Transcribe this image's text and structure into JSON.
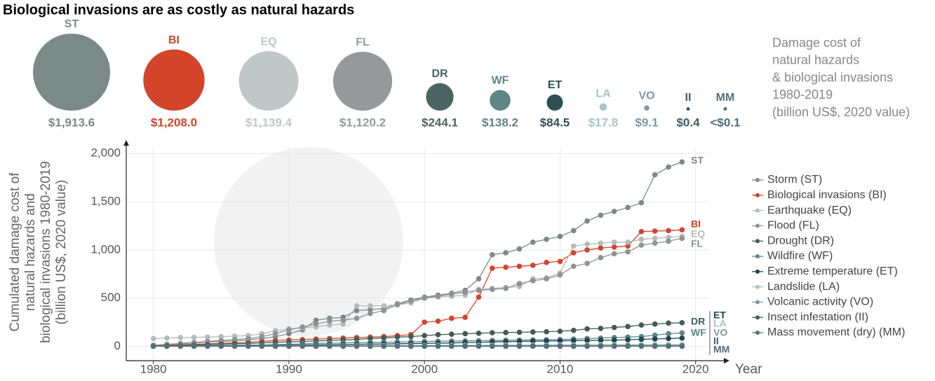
{
  "chart_data": [
    {
      "type": "bubble",
      "title": "Biological invasions are as costly as natural hazards",
      "annotation": [
        "Damage cost of",
        "natural hazards",
        "& biological invasions",
        "1980-2019",
        "(billion US$, 2020 value)"
      ],
      "categories": [
        "ST",
        "BI",
        "EQ",
        "FL",
        "DR",
        "WF",
        "ET",
        "LA",
        "VO",
        "II",
        "MM"
      ],
      "values": [
        1913.6,
        1208.0,
        1139.4,
        1120.2,
        244.1,
        138.2,
        84.5,
        17.8,
        9.1,
        0.4,
        0.05
      ],
      "value_labels": [
        "$1,913.6",
        "$1,208.0",
        "$1,139.4",
        "$1,120.2",
        "$244.1",
        "$138.2",
        "$84.5",
        "$17.8",
        "$9.1",
        "$0.4",
        "<$0.1"
      ],
      "colors": [
        "#7a8a87",
        "#d2452a",
        "#c0c8c7",
        "#969a9b",
        "#4d6562",
        "#5e8587",
        "#2e4f55",
        "#a9c4c3",
        "#7e9aa6",
        "#3e5c6a",
        "#52707a"
      ]
    },
    {
      "type": "line",
      "y_label": [
        "Cumulated damage cost of",
        "natural hazards and",
        "biological invasions 1980-2019",
        "(billion US$, 2020 value)"
      ],
      "x_label": "Year",
      "xlim": [
        1978,
        2022.5
      ],
      "xticks": [
        1980,
        1990,
        2000,
        2010,
        2020
      ],
      "ylim": [
        -150,
        2140
      ],
      "yticks": [
        0,
        500,
        {
          "value": 1000,
          "label": "1,000"
        },
        {
          "value": 1500,
          "label": "1,500"
        },
        {
          "value": 2000,
          "label": "2,000"
        }
      ],
      "grid": true,
      "legend": "right",
      "x": [
        1980,
        1981,
        1982,
        1983,
        1984,
        1985,
        1986,
        1987,
        1988,
        1989,
        1990,
        1991,
        1992,
        1993,
        1994,
        1995,
        1996,
        1997,
        1998,
        1999,
        2000,
        2001,
        2002,
        2003,
        2004,
        2005,
        2006,
        2007,
        2008,
        2009,
        2010,
        2011,
        2012,
        2013,
        2014,
        2015,
        2016,
        2017,
        2018,
        2019
      ],
      "series": [
        {
          "name": "Storm (ST)",
          "label": "ST",
          "color": "#7a8a87",
          "values": [
            10,
            20,
            25,
            35,
            45,
            50,
            55,
            65,
            80,
            100,
            130,
            170,
            270,
            290,
            300,
            370,
            380,
            390,
            440,
            480,
            510,
            530,
            550,
            580,
            700,
            950,
            970,
            1010,
            1080,
            1110,
            1140,
            1200,
            1300,
            1360,
            1400,
            1440,
            1490,
            1780,
            1860,
            1913.6
          ]
        },
        {
          "name": "Biological invasions (BI)",
          "label": "BI",
          "color": "#d2452a",
          "values": [
            5,
            10,
            15,
            20,
            25,
            30,
            35,
            40,
            50,
            60,
            65,
            70,
            75,
            80,
            85,
            90,
            95,
            100,
            110,
            120,
            250,
            260,
            290,
            300,
            510,
            810,
            820,
            830,
            840,
            870,
            880,
            970,
            1000,
            1020,
            1030,
            1040,
            1190,
            1195,
            1200,
            1208.0
          ]
        },
        {
          "name": "Earthquake (EQ)",
          "label": "EQ",
          "color": "#b4bcbb",
          "values": [
            80,
            85,
            90,
            92,
            95,
            100,
            105,
            110,
            130,
            160,
            180,
            190,
            200,
            220,
            230,
            420,
            420,
            420,
            430,
            450,
            500,
            510,
            520,
            530,
            590,
            600,
            610,
            620,
            700,
            710,
            760,
            1040,
            1060,
            1070,
            1080,
            1080,
            1110,
            1120,
            1130,
            1139.4
          ]
        },
        {
          "name": "Flood (FL)",
          "label": "FL",
          "color": "#8f9394",
          "values": [
            10,
            20,
            30,
            40,
            50,
            60,
            70,
            80,
            100,
            130,
            170,
            200,
            230,
            260,
            270,
            290,
            340,
            370,
            430,
            470,
            500,
            520,
            540,
            560,
            580,
            590,
            600,
            650,
            680,
            700,
            740,
            830,
            860,
            920,
            960,
            980,
            1050,
            1070,
            1090,
            1120.2
          ]
        },
        {
          "name": "Drought (DR)",
          "label": "DR",
          "color": "#3f5c55",
          "values": [
            2,
            5,
            8,
            12,
            15,
            20,
            25,
            28,
            35,
            40,
            45,
            50,
            55,
            60,
            65,
            70,
            80,
            85,
            95,
            100,
            110,
            120,
            125,
            130,
            135,
            140,
            142,
            145,
            148,
            150,
            155,
            165,
            180,
            185,
            195,
            205,
            220,
            230,
            240,
            244.1
          ]
        },
        {
          "name": "Wildfire (WF)",
          "label": "WF",
          "color": "#5e8587",
          "values": [
            1,
            2,
            3,
            4,
            5,
            7,
            9,
            11,
            13,
            16,
            20,
            25,
            30,
            32,
            35,
            38,
            40,
            42,
            44,
            46,
            50,
            52,
            54,
            56,
            58,
            60,
            62,
            64,
            66,
            68,
            70,
            75,
            80,
            85,
            90,
            95,
            100,
            115,
            130,
            138.2
          ]
        },
        {
          "name": "Extreme temperature (ET)",
          "label": "ET",
          "color": "#1e4650",
          "values": [
            0.5,
            1,
            1.5,
            2,
            3,
            4,
            5,
            6,
            7,
            8,
            10,
            12,
            14,
            16,
            18,
            20,
            22,
            24,
            26,
            28,
            30,
            32,
            34,
            38,
            40,
            45,
            48,
            50,
            52,
            54,
            56,
            58,
            60,
            62,
            64,
            68,
            72,
            76,
            80,
            84.5
          ]
        },
        {
          "name": "Landslide (LA)",
          "label": "LA",
          "color": "#a9c4c3",
          "values": [
            0.2,
            0.5,
            0.8,
            1.1,
            1.5,
            1.9,
            2.3,
            2.7,
            3.1,
            3.5,
            4.0,
            4.5,
            5.0,
            5.5,
            6.0,
            6.5,
            7.0,
            7.5,
            8.0,
            8.5,
            9.0,
            9.5,
            10.0,
            10.5,
            11.0,
            11.5,
            12.0,
            12.5,
            13.0,
            13.5,
            14.0,
            14.5,
            15.0,
            15.5,
            16.0,
            16.4,
            16.8,
            17.2,
            17.5,
            17.8
          ]
        },
        {
          "name": "Volcanic activity (VO)",
          "label": "VO",
          "color": "#7e9aa6",
          "values": [
            0.1,
            0.2,
            0.4,
            0.6,
            0.8,
            1.0,
            1.2,
            1.4,
            1.6,
            1.8,
            2.0,
            2.3,
            2.6,
            2.9,
            3.2,
            3.5,
            3.8,
            4.1,
            4.4,
            4.7,
            5.0,
            5.2,
            5.4,
            5.6,
            5.8,
            6.0,
            6.2,
            6.4,
            6.6,
            6.8,
            7.0,
            7.3,
            7.6,
            7.9,
            8.2,
            8.4,
            8.6,
            8.8,
            9.0,
            9.1
          ]
        },
        {
          "name": "Insect infestation (II)",
          "label": "II",
          "color": "#3e5c6a",
          "values": [
            0.01,
            0.02,
            0.03,
            0.04,
            0.05,
            0.06,
            0.07,
            0.08,
            0.09,
            0.1,
            0.11,
            0.12,
            0.13,
            0.14,
            0.15,
            0.16,
            0.17,
            0.18,
            0.19,
            0.2,
            0.21,
            0.22,
            0.23,
            0.24,
            0.25,
            0.26,
            0.27,
            0.28,
            0.29,
            0.3,
            0.31,
            0.32,
            0.33,
            0.34,
            0.35,
            0.36,
            0.37,
            0.38,
            0.39,
            0.4
          ]
        },
        {
          "name": "Mass movement (dry) (MM)",
          "label": "MM",
          "color": "#52707a",
          "values": [
            0.01,
            0.01,
            0.01,
            0.01,
            0.01,
            0.01,
            0.01,
            0.01,
            0.01,
            0.01,
            0.02,
            0.02,
            0.02,
            0.02,
            0.02,
            0.02,
            0.02,
            0.02,
            0.02,
            0.02,
            0.03,
            0.03,
            0.03,
            0.03,
            0.03,
            0.03,
            0.03,
            0.03,
            0.03,
            0.03,
            0.05,
            0.05,
            0.05,
            0.05,
            0.05,
            0.05,
            0.05,
            0.05,
            0.05,
            0.05
          ]
        }
      ]
    }
  ]
}
